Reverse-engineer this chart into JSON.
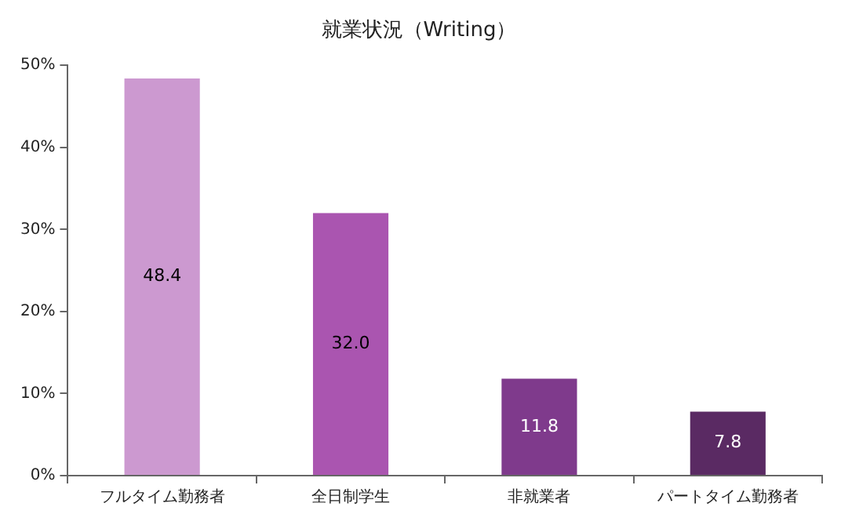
{
  "chart_data": {
    "type": "bar",
    "title": "就業状況（Writing）",
    "categories": [
      "フルタイム勤務者",
      "全日制学生",
      "非就業者",
      "パートタイム勤務者"
    ],
    "values": [
      48.4,
      32.0,
      11.8,
      7.8
    ],
    "value_labels": [
      "48.4",
      "32.0",
      "11.8",
      "7.8"
    ],
    "colors": [
      "#cc99d0",
      "#aa55b0",
      "#7f3a8c",
      "#5a2a63"
    ],
    "ylim": [
      0,
      50
    ],
    "yticks": [
      {
        "value": 0,
        "label": "0%"
      },
      {
        "value": 10,
        "label": "10%"
      },
      {
        "value": 20,
        "label": "20%"
      },
      {
        "value": 30,
        "label": "30%"
      },
      {
        "value": 40,
        "label": "40%"
      },
      {
        "value": 50,
        "label": "50%"
      }
    ],
    "grid": false,
    "legend": false
  }
}
